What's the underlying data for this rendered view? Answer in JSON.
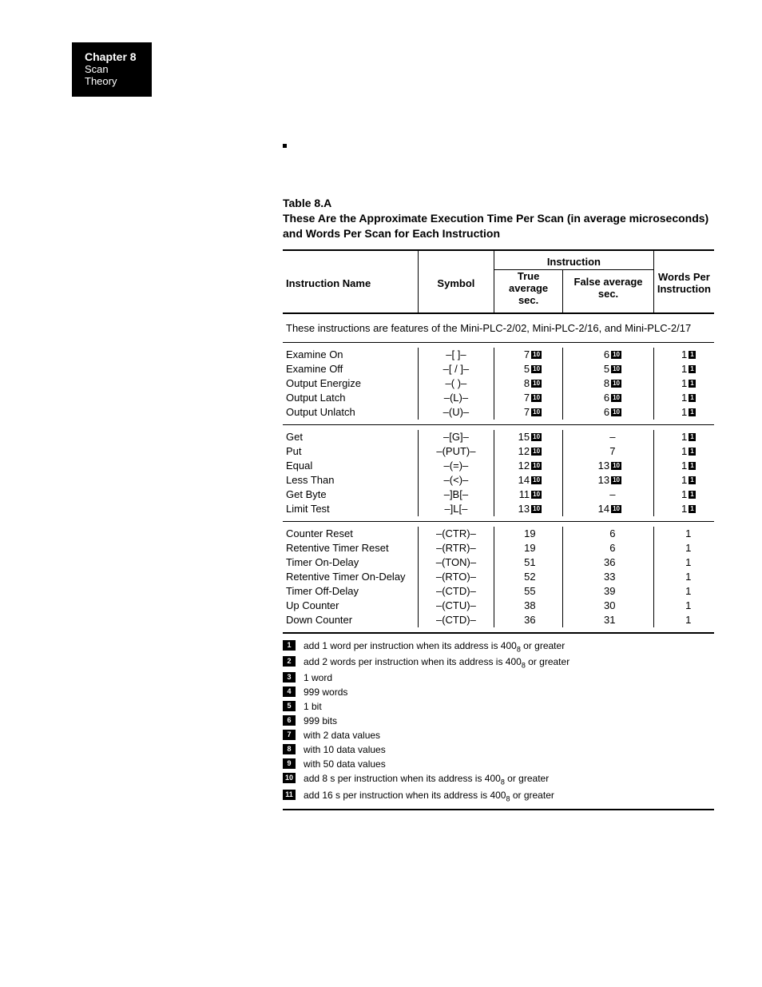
{
  "header": {
    "chapter": "Chapter 8",
    "title": "Scan Theory"
  },
  "caption": {
    "label": "Table 8.A",
    "text": "These Are the Approximate Execution Time Per Scan (in average microseconds) and Words Per Scan for Each Instruction"
  },
  "columns": {
    "name": "Instruction Name",
    "symbol": "Symbol",
    "instruction": "Instruction",
    "true": "True average sec.",
    "false": "False average sec.",
    "words": "Words Per Instruction"
  },
  "section_note": "These instructions are features of the Mini-PLC-2/02, Mini-PLC-2/16, and Mini-PLC-2/17",
  "groups": [
    {
      "rows": [
        {
          "name": "Examine On",
          "sym": "–[   ]–",
          "t": "7",
          "tfn": "10",
          "f": "6",
          "ffn": "10",
          "w": "1",
          "wfn": "1"
        },
        {
          "name": "Examine Off",
          "sym": "–[ / ]–",
          "t": "5",
          "tfn": "10",
          "f": "5",
          "ffn": "10",
          "w": "1",
          "wfn": "1"
        },
        {
          "name": "Output Energize",
          "sym": "–(   )–",
          "t": "8",
          "tfn": "10",
          "f": "8",
          "ffn": "10",
          "w": "1",
          "wfn": "1"
        },
        {
          "name": "Output Latch",
          "sym": "–(L)–",
          "t": "7",
          "tfn": "10",
          "f": "6",
          "ffn": "10",
          "w": "1",
          "wfn": "1"
        },
        {
          "name": "Output Unlatch",
          "sym": "–(U)–",
          "t": "7",
          "tfn": "10",
          "f": "6",
          "ffn": "10",
          "w": "1",
          "wfn": "1"
        }
      ]
    },
    {
      "rows": [
        {
          "name": "Get",
          "sym": "–[G]–",
          "t": "15",
          "tfn": "10",
          "f": "–",
          "ffn": "",
          "w": "1",
          "wfn": "1"
        },
        {
          "name": "Put",
          "sym": "–(PUT)–",
          "t": "12",
          "tfn": "10",
          "f": "7",
          "ffn": "",
          "w": "1",
          "wfn": "1"
        },
        {
          "name": "Equal",
          "sym": "–(=)–",
          "t": "12",
          "tfn": "10",
          "f": "13",
          "ffn": "10",
          "w": "1",
          "wfn": "1"
        },
        {
          "name": "Less Than",
          "sym": "–(<)–",
          "t": "14",
          "tfn": "10",
          "f": "13",
          "ffn": "10",
          "w": "1",
          "wfn": "1"
        },
        {
          "name": "Get Byte",
          "sym": "–]B[–",
          "t": "11",
          "tfn": "10",
          "f": "–",
          "ffn": "",
          "w": "1",
          "wfn": "1"
        },
        {
          "name": "Limit Test",
          "sym": "–]L[–",
          "t": "13",
          "tfn": "10",
          "f": "14",
          "ffn": "10",
          "w": "1",
          "wfn": "1"
        }
      ]
    },
    {
      "rows": [
        {
          "name": "Counter Reset",
          "sym": "–(CTR)–",
          "t": "19",
          "tfn": "",
          "f": "6",
          "ffn": "",
          "w": "1",
          "wfn": ""
        },
        {
          "name": "Retentive Timer Reset",
          "sym": "–(RTR)–",
          "t": "19",
          "tfn": "",
          "f": "6",
          "ffn": "",
          "w": "1",
          "wfn": ""
        },
        {
          "name": "Timer On-Delay",
          "sym": "–(TON)–",
          "t": "51",
          "tfn": "",
          "f": "36",
          "ffn": "",
          "w": "1",
          "wfn": ""
        },
        {
          "name": "Retentive Timer On-Delay",
          "sym": "–(RTO)–",
          "t": "52",
          "tfn": "",
          "f": "33",
          "ffn": "",
          "w": "1",
          "wfn": ""
        },
        {
          "name": "Timer Off-Delay",
          "sym": "–(CTD)–",
          "t": "55",
          "tfn": "",
          "f": "39",
          "ffn": "",
          "w": "1",
          "wfn": ""
        },
        {
          "name": "Up Counter",
          "sym": "–(CTU)–",
          "t": "38",
          "tfn": "",
          "f": "30",
          "ffn": "",
          "w": "1",
          "wfn": ""
        },
        {
          "name": "Down Counter",
          "sym": "–(CTD)–",
          "t": "36",
          "tfn": "",
          "f": "31",
          "ffn": "",
          "w": "1",
          "wfn": ""
        }
      ]
    }
  ],
  "footnotes": [
    {
      "n": "1",
      "t": "add 1 word per instruction when its address is 400₈ or greater"
    },
    {
      "n": "2",
      "t": "add 2 words per instruction when its address is 400₈ or greater"
    },
    {
      "n": "3",
      "t": "1 word"
    },
    {
      "n": "4",
      "t": "999 words"
    },
    {
      "n": "5",
      "t": "1 bit"
    },
    {
      "n": "6",
      "t": "999 bits"
    },
    {
      "n": "7",
      "t": "with 2 data values"
    },
    {
      "n": "8",
      "t": "with 10 data values"
    },
    {
      "n": "9",
      "t": "with 50 data values"
    },
    {
      "n": "10",
      "t": "add 8  s per instruction when its address is 400₈ or greater"
    },
    {
      "n": "11",
      "t": "add 16  s per instruction when its address is 400₈ or greater"
    }
  ],
  "colors": {
    "bg": "#ffffff",
    "fg": "#000000"
  }
}
